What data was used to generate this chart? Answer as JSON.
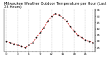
{
  "title": "Milwaukee Weather Outdoor Temperature per Hour (Last 24 Hours)",
  "hours": [
    0,
    1,
    2,
    3,
    4,
    5,
    6,
    7,
    8,
    9,
    10,
    11,
    12,
    13,
    14,
    15,
    16,
    17,
    18,
    19,
    20,
    21,
    22,
    23
  ],
  "temps": [
    30,
    29,
    28,
    27,
    26,
    25,
    27,
    29,
    33,
    37,
    41,
    46,
    50,
    52,
    51,
    49,
    46,
    42,
    38,
    35,
    33,
    31,
    30,
    29
  ],
  "line_color": "#cc0000",
  "marker_color": "#000000",
  "bg_color": "#ffffff",
  "grid_color": "#999999",
  "ylim": [
    22,
    56
  ],
  "yticks": [
    25,
    30,
    35,
    40,
    45,
    50,
    55
  ],
  "ytick_labels": [
    "25",
    "30",
    "35",
    "40",
    "45",
    "50",
    "55"
  ],
  "xtick_positions": [
    0,
    3,
    6,
    9,
    12,
    15,
    18,
    21
  ],
  "xtick_labels": [
    "0",
    "3",
    "6",
    "9",
    "12",
    "15",
    "18",
    "21"
  ],
  "title_fontsize": 3.8,
  "tick_fontsize": 3.0,
  "line_width": 0.7,
  "marker_size": 1.2,
  "vgrid_positions": [
    0,
    3,
    6,
    9,
    12,
    15,
    18,
    21,
    23
  ]
}
